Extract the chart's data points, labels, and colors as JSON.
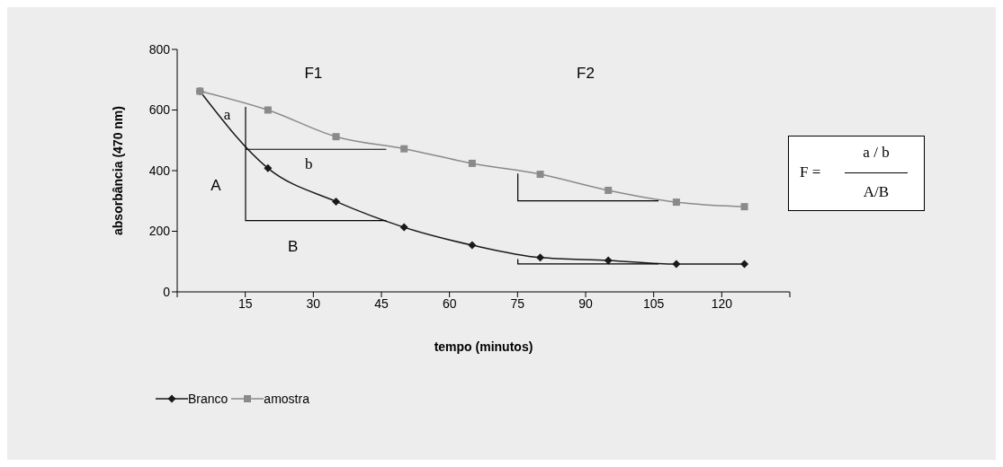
{
  "chart_data": {
    "type": "line",
    "xlabel": "tempo (minutos)",
    "ylabel": "absorbância (470 nm)",
    "x": [
      5,
      20,
      35,
      50,
      65,
      80,
      95,
      110,
      125
    ],
    "series": [
      {
        "name": "Branco",
        "color": "#1a1a1a",
        "marker": "diamond",
        "values": [
          662,
          408,
          298,
          213,
          154,
          113,
          104,
          92,
          92
        ]
      },
      {
        "name": "amostra",
        "color": "#8a8a8a",
        "marker": "square",
        "values": [
          662,
          600,
          512,
          472,
          424,
          388,
          335,
          296,
          281
        ]
      }
    ],
    "xlim": [
      0,
      135
    ],
    "xticks": [
      {
        "value": 0,
        "label": null
      },
      15,
      30,
      45,
      60,
      75,
      90,
      105,
      120,
      {
        "value": 135,
        "label": null
      }
    ],
    "ylim": [
      0,
      800
    ],
    "yticks": [
      0,
      200,
      400,
      600,
      800
    ],
    "grid": false,
    "legend": "bottom left",
    "annotations": [
      "F1",
      "F2",
      "a",
      "b",
      "A",
      "B",
      "F =",
      "a / b",
      "A/B"
    ]
  }
}
